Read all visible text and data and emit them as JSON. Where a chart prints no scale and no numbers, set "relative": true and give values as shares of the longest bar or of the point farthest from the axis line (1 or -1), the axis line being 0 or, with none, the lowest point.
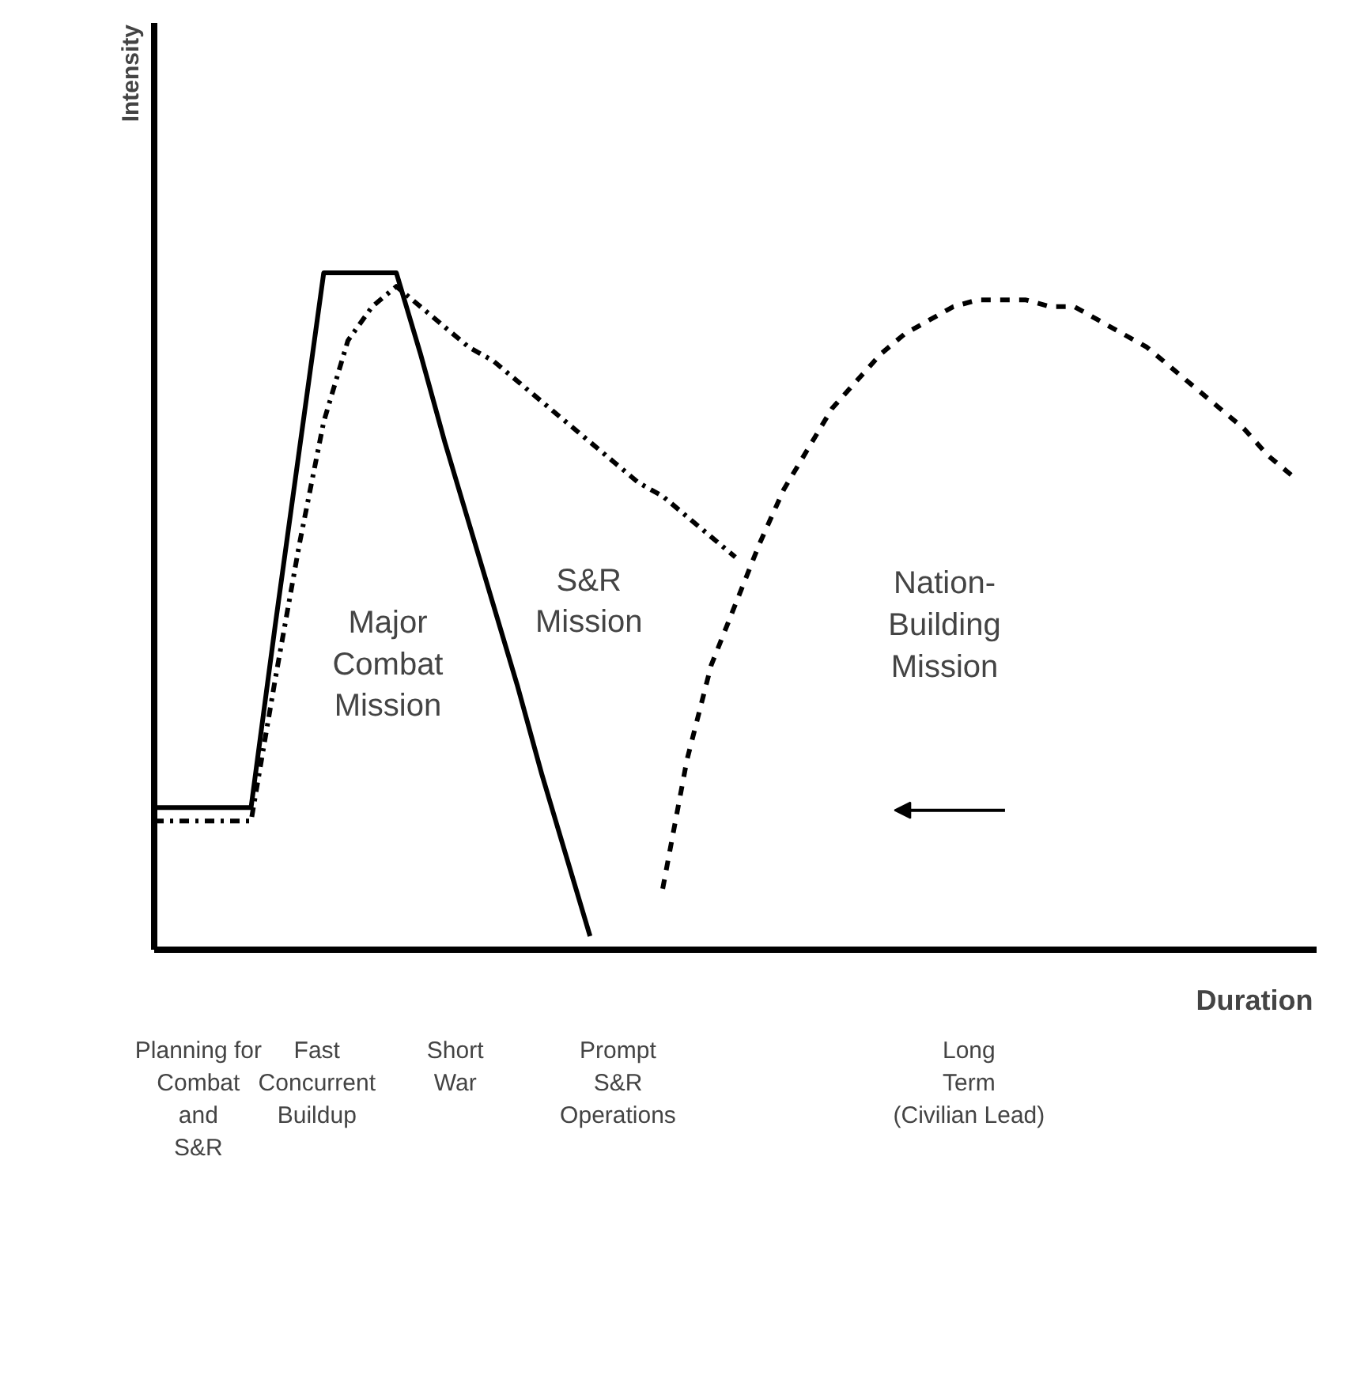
{
  "chart_data": {
    "type": "line",
    "relative": true,
    "xlabel": "Duration",
    "categories": [
      null,
      null,
      null,
      null,
      null,
      null,
      null,
      null,
      null,
      null,
      null,
      null,
      null,
      null,
      null,
      null,
      null,
      null,
      null,
      null,
      null,
      null,
      null,
      null,
      null,
      null,
      null,
      null,
      null,
      null,
      null,
      null,
      null,
      null,
      null,
      null,
      null,
      null,
      null,
      null,
      null,
      null,
      null,
      null,
      null,
      null,
      null,
      null
    ],
    "series": [
      {
        "color": "#000000",
        "line_style": "solid",
        "values": [
          0.21,
          0.21,
          0.21,
          0.21,
          0.21,
          0.48,
          0.74,
          1,
          1,
          1,
          1,
          0.88,
          0.75,
          0.63,
          0.51,
          0.39,
          0.26,
          0.14,
          0.02,
          null,
          null,
          null,
          null,
          null,
          null,
          null,
          null,
          null,
          null,
          null,
          null,
          null,
          null,
          null,
          null,
          null,
          null,
          null,
          null,
          null,
          null,
          null,
          null,
          null,
          null,
          null,
          null,
          null
        ]
      },
      {
        "color": "#000000",
        "line_style": "dashdot",
        "values": [
          0.19,
          0.19,
          0.19,
          0.19,
          0.19,
          0.4,
          0.6,
          0.78,
          0.9,
          0.95,
          0.98,
          0.95,
          0.92,
          0.89,
          0.87,
          0.84,
          0.81,
          0.78,
          0.75,
          0.72,
          0.69,
          0.67,
          0.64,
          0.61,
          0.58,
          null,
          null,
          null,
          null,
          null,
          null,
          null,
          null,
          null,
          null,
          null,
          null,
          null,
          null,
          null,
          null,
          null,
          null,
          null,
          null,
          null,
          null,
          null
        ]
      },
      {
        "color": "#000000",
        "line_style": "dashed",
        "values": [
          null,
          null,
          null,
          null,
          null,
          null,
          null,
          null,
          null,
          null,
          null,
          null,
          null,
          null,
          null,
          null,
          null,
          null,
          null,
          null,
          null,
          0.09,
          0.28,
          0.42,
          0.51,
          0.6,
          0.68,
          0.74,
          0.8,
          0.84,
          0.88,
          0.91,
          0.93,
          0.95,
          0.96,
          0.96,
          0.96,
          0.95,
          0.95,
          0.93,
          0.91,
          0.89,
          0.86,
          0.83,
          0.8,
          0.77,
          0.73,
          0.7
        ]
      }
    ],
    "annotations": [
      "Major\nCombat\nMission",
      "S&R\nMission",
      "Nation-\nBuilding\nMission",
      "Planning for\nCombat\nand\nS&R",
      "Fast\nConcurrent\nBuildup",
      "Short\nWar",
      "Prompt\nS&R\nOperations",
      "Long\nTerm\n(Civilian Lead)",
      "Intensity"
    ]
  }
}
